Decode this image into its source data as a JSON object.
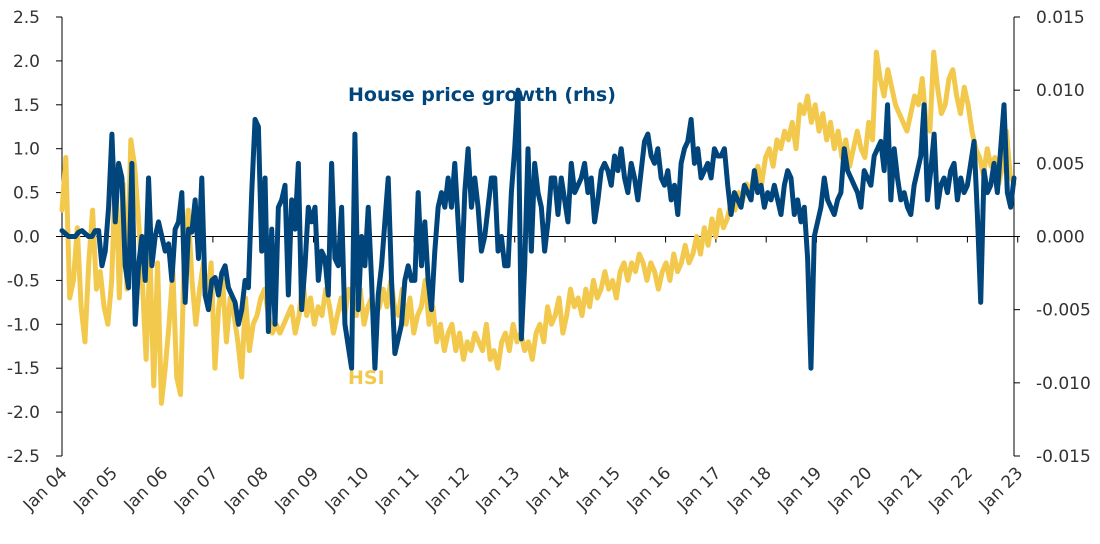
{
  "chart_data": {
    "type": "line",
    "title": "",
    "xlabel": "",
    "ylabel": "",
    "x_ticks": [
      "Jan 04",
      "Jan 05",
      "Jan 06",
      "Jan 07",
      "Jan 08",
      "Jan 09",
      "Jan 10",
      "Jan 11",
      "Jan 12",
      "Jan 13",
      "Jan 14",
      "Jan 15",
      "Jan 16",
      "Jan 17",
      "Jan 18",
      "Jan 19",
      "Jan 20",
      "Jan 21",
      "Jan 22",
      "Jan 23"
    ],
    "x_start": "Jan 04",
    "x_end": "Mar 23",
    "left_axis": {
      "ylim": [
        -2.5,
        2.5
      ],
      "ticks": [
        "-2.5",
        "-2.0",
        "-1.5",
        "-1.0",
        "-0.5",
        "0.0",
        "0.5",
        "1.0",
        "1.5",
        "2.0",
        "2.5"
      ]
    },
    "right_axis": {
      "ylim": [
        -0.015,
        0.015
      ],
      "ticks": [
        "-0.015",
        "-0.010",
        "-0.005",
        "0.000",
        "0.005",
        "0.010",
        "0.015"
      ]
    },
    "series": [
      {
        "name": "HSI",
        "axis": "left",
        "color": "#F2C94C",
        "values": [
          0.3,
          0.9,
          -0.7,
          -0.5,
          0.1,
          -0.8,
          -1.2,
          -0.3,
          0.3,
          -0.6,
          -0.4,
          -0.8,
          -1.0,
          -0.5,
          0.8,
          -0.7,
          0.6,
          -0.6,
          1.1,
          0.8,
          0.2,
          -0.5,
          -1.4,
          -0.2,
          -1.7,
          -0.3,
          -1.9,
          -1.5,
          -1.0,
          -0.4,
          -1.6,
          -1.8,
          -0.2,
          0.3,
          -0.5,
          -1.0,
          -0.6,
          -0.3,
          -0.7,
          -0.3,
          -1.5,
          -0.8,
          -0.5,
          -1.2,
          -0.7,
          -0.9,
          -1.2,
          -1.6,
          -0.7,
          -1.3,
          -1.0,
          -0.9,
          -0.7,
          -0.6,
          -0.9,
          -1.1,
          -1.0,
          -1.1,
          -1.0,
          -0.9,
          -0.8,
          -1.1,
          -0.9,
          -0.5,
          -0.9,
          -0.7,
          -1.0,
          -0.8,
          -0.9,
          -0.6,
          -0.8,
          -1.1,
          -0.9,
          -0.7,
          -0.9,
          -0.6,
          -0.7,
          -0.9,
          -0.6,
          -1.0,
          -0.8,
          -0.7,
          -0.9,
          -0.8,
          -0.6,
          -0.8,
          -0.5,
          -0.8,
          -0.9,
          -0.6,
          -1.0,
          -0.7,
          -1.1,
          -0.9,
          -0.8,
          -0.5,
          -1.0,
          -0.8,
          -1.2,
          -1.0,
          -1.3,
          -1.1,
          -1.0,
          -1.3,
          -1.1,
          -1.4,
          -1.2,
          -1.3,
          -1.1,
          -1.2,
          -1.3,
          -1.0,
          -1.4,
          -1.3,
          -1.5,
          -1.2,
          -1.1,
          -1.3,
          -1.0,
          -1.2,
          -1.1,
          -1.3,
          -1.2,
          -1.4,
          -1.1,
          -1.0,
          -1.2,
          -0.8,
          -1.0,
          -0.9,
          -0.7,
          -1.1,
          -0.9,
          -0.6,
          -0.8,
          -0.7,
          -0.9,
          -0.6,
          -0.8,
          -0.5,
          -0.7,
          -0.6,
          -0.4,
          -0.6,
          -0.5,
          -0.7,
          -0.4,
          -0.3,
          -0.5,
          -0.3,
          -0.4,
          -0.2,
          -0.3,
          -0.5,
          -0.3,
          -0.4,
          -0.6,
          -0.4,
          -0.3,
          -0.5,
          -0.2,
          -0.4,
          -0.3,
          -0.1,
          -0.3,
          -0.2,
          0.0,
          -0.2,
          0.1,
          -0.1,
          0.2,
          0.0,
          0.3,
          0.1,
          0.2,
          0.4,
          0.3,
          0.5,
          0.4,
          0.6,
          0.5,
          0.7,
          0.8,
          0.6,
          0.9,
          1.0,
          0.8,
          1.1,
          1.0,
          1.2,
          1.1,
          1.3,
          1.0,
          1.5,
          1.4,
          1.6,
          1.3,
          1.5,
          1.2,
          1.4,
          1.1,
          1.3,
          1.0,
          1.2,
          0.9,
          1.1,
          0.8,
          1.0,
          1.2,
          1.0,
          0.9,
          1.3,
          1.1,
          2.1,
          1.8,
          1.6,
          1.9,
          1.7,
          1.5,
          1.4,
          1.3,
          1.2,
          1.4,
          1.6,
          1.5,
          1.8,
          1.3,
          1.2,
          2.1,
          1.7,
          1.4,
          1.5,
          1.8,
          1.9,
          1.6,
          1.4,
          1.7,
          1.5,
          1.2,
          1.0,
          0.9,
          0.7,
          1.0,
          0.8,
          0.9,
          0.6,
          0.8,
          1.2,
          0.7,
          0.6
        ]
      },
      {
        "name": "House price growth (rhs)",
        "axis": "right",
        "color": "#00457C",
        "values": [
          0.0004,
          0.0002,
          0.0,
          0.0,
          0.0,
          0.0003,
          0.0004,
          0.0002,
          0.0,
          0.0,
          0.0004,
          0.0004,
          -0.002,
          -0.001,
          0.002,
          0.007,
          0.001,
          0.005,
          0.004,
          -0.002,
          -0.0035,
          0.005,
          -0.006,
          -0.002,
          0.0,
          -0.003,
          0.004,
          -0.002,
          0.0,
          0.001,
          0.0,
          -0.001,
          -0.0005,
          -0.003,
          0.0005,
          0.001,
          0.003,
          -0.0045,
          0.0005,
          0.0003,
          0.0025,
          -0.0015,
          0.004,
          -0.004,
          -0.005,
          -0.003,
          -0.0028,
          -0.004,
          -0.0025,
          -0.002,
          -0.0035,
          -0.004,
          -0.0045,
          -0.006,
          -0.005,
          -0.003,
          -0.0035,
          0.003,
          0.008,
          0.0075,
          -0.001,
          0.004,
          -0.0065,
          0.0005,
          -0.006,
          0.002,
          0.0025,
          0.0035,
          -0.004,
          0.0025,
          0.0005,
          0.005,
          -0.005,
          -0.002,
          0.002,
          0.001,
          0.002,
          -0.003,
          -0.001,
          -0.0015,
          -0.004,
          0.005,
          -0.0015,
          -0.002,
          0.002,
          -0.006,
          -0.0075,
          -0.009,
          0.007,
          -0.005,
          0.0,
          -0.002,
          0.002,
          -0.003,
          -0.009,
          -0.004,
          -0.002,
          0.001,
          0.004,
          -0.003,
          -0.008,
          -0.007,
          -0.006,
          -0.003,
          -0.002,
          -0.003,
          -0.003,
          0.003,
          -0.002,
          0.001,
          -0.003,
          -0.005,
          -0.001,
          0.002,
          0.003,
          0.002,
          0.004,
          0.002,
          0.005,
          0.001,
          -0.003,
          0.003,
          0.006,
          0.002,
          0.004,
          0.002,
          -0.001,
          0.0,
          0.002,
          0.004,
          0.004,
          -0.001,
          0.0,
          -0.002,
          -0.002,
          0.003,
          0.006,
          0.01,
          -0.007,
          -0.002,
          0.006,
          -0.001,
          0.005,
          0.003,
          0.002,
          -0.001,
          0.001,
          0.004,
          0.004,
          0.0015,
          0.004,
          0.0025,
          0.001,
          0.005,
          0.003,
          0.0035,
          0.004,
          0.005,
          0.003,
          0.004,
          0.001,
          0.0025,
          0.0045,
          0.005,
          0.0045,
          0.0035,
          0.0055,
          0.0045,
          0.006,
          0.004,
          0.003,
          0.005,
          0.004,
          0.0025,
          0.0045,
          0.0065,
          0.007,
          0.0055,
          0.005,
          0.006,
          0.004,
          0.0035,
          0.0045,
          0.0025,
          0.0035,
          0.0015,
          0.005,
          0.006,
          0.0065,
          0.008,
          0.005,
          0.006,
          0.004,
          0.0045,
          0.005,
          0.004,
          0.006,
          0.0055,
          0.0055,
          0.006,
          0.0035,
          0.0015,
          0.003,
          0.0025,
          0.002,
          0.0035,
          0.003,
          0.0025,
          0.0045,
          0.003,
          0.0035,
          0.002,
          0.003,
          0.0025,
          0.0035,
          0.0025,
          0.0015,
          0.0035,
          0.0045,
          0.004,
          0.0015,
          0.0025,
          0.001,
          0.002,
          -0.0015,
          -0.009,
          0.0,
          0.001,
          0.002,
          0.004,
          0.0025,
          0.002,
          0.0015,
          0.0025,
          0.003,
          0.006,
          0.0045,
          0.004,
          0.0035,
          0.003,
          0.002,
          0.0045,
          0.004,
          0.0035,
          0.0055,
          0.006,
          0.0065,
          0.0045,
          0.009,
          0.0025,
          0.006,
          0.004,
          0.0025,
          0.003,
          0.002,
          0.0015,
          0.0035,
          0.0045,
          0.0055,
          0.009,
          0.0025,
          0.0045,
          0.007,
          0.002,
          0.0035,
          0.004,
          0.003,
          0.0045,
          0.005,
          0.0025,
          0.004,
          0.003,
          0.0035,
          0.005,
          0.0065,
          0.0015,
          -0.0045,
          0.0045,
          0.003,
          0.0035,
          0.005,
          0.003,
          0.006,
          0.009,
          0.003,
          0.002,
          0.004
        ]
      }
    ],
    "annotations": [
      {
        "text": "House price growth (rhs)",
        "series": "House price growth (rhs)"
      },
      {
        "text": "HSI",
        "series": "HSI"
      }
    ],
    "grid": false,
    "zero_line": true
  }
}
